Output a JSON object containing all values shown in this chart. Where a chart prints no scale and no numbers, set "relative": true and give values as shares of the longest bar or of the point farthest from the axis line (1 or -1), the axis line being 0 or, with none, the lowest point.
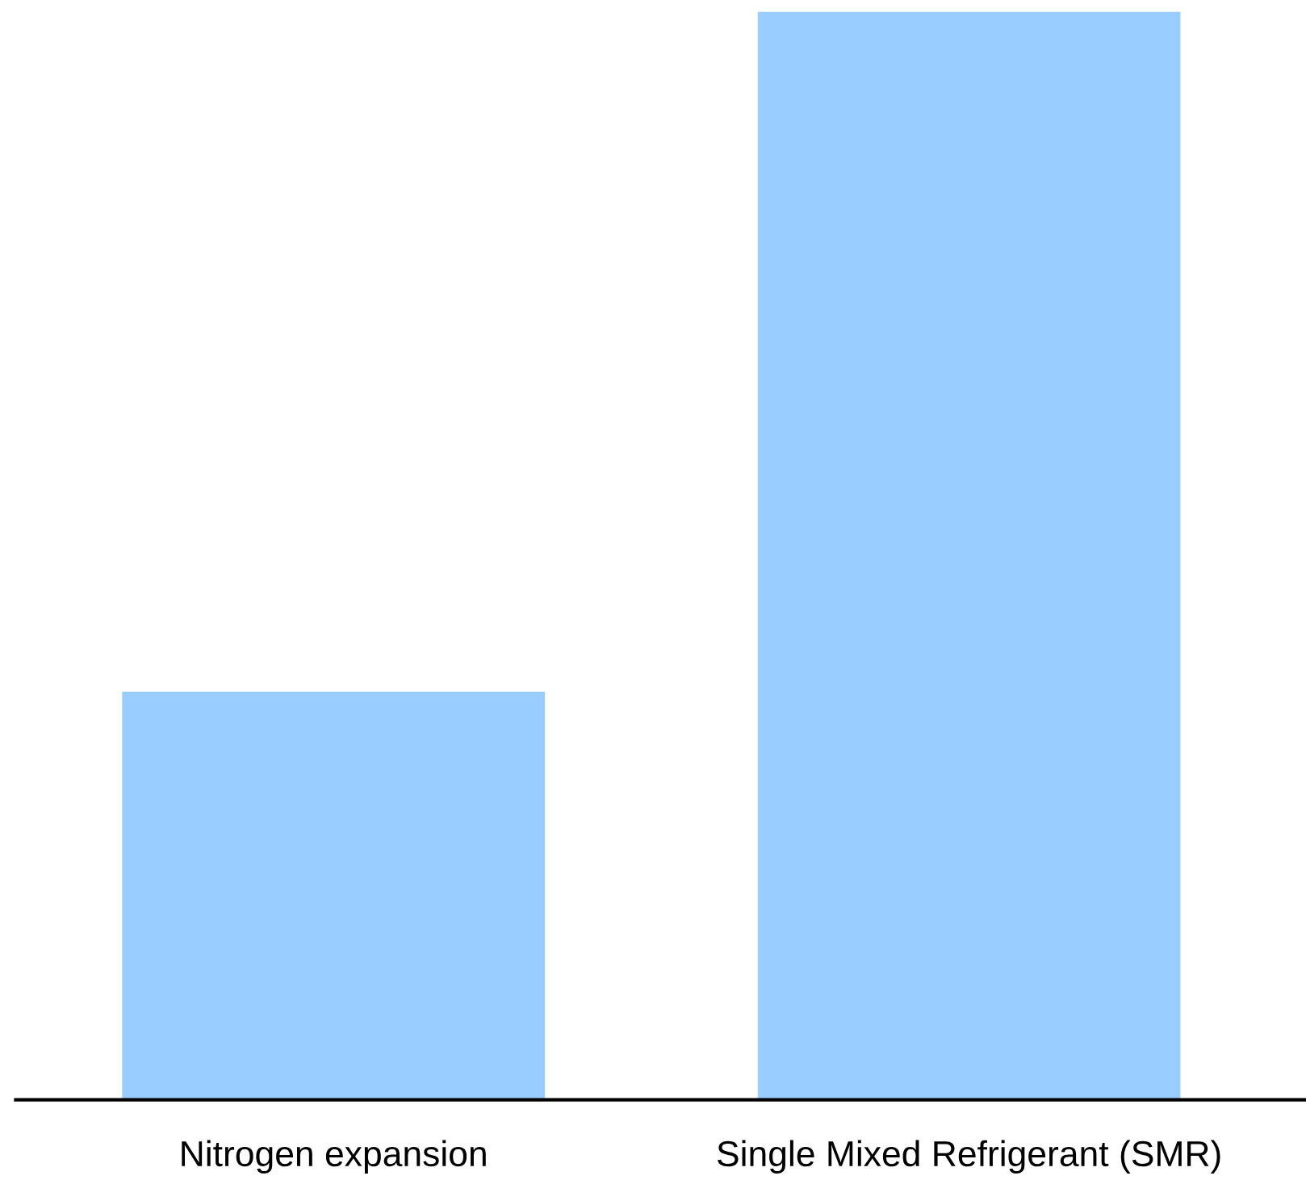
{
  "chart_data": {
    "type": "bar",
    "relative": true,
    "categories": [
      "Nitrogen expansion",
      "Single Mixed Refrigerant (SMR)"
    ],
    "values": [
      0.375,
      1
    ],
    "color": "#99ccff",
    "grid": false,
    "legend": false
  }
}
